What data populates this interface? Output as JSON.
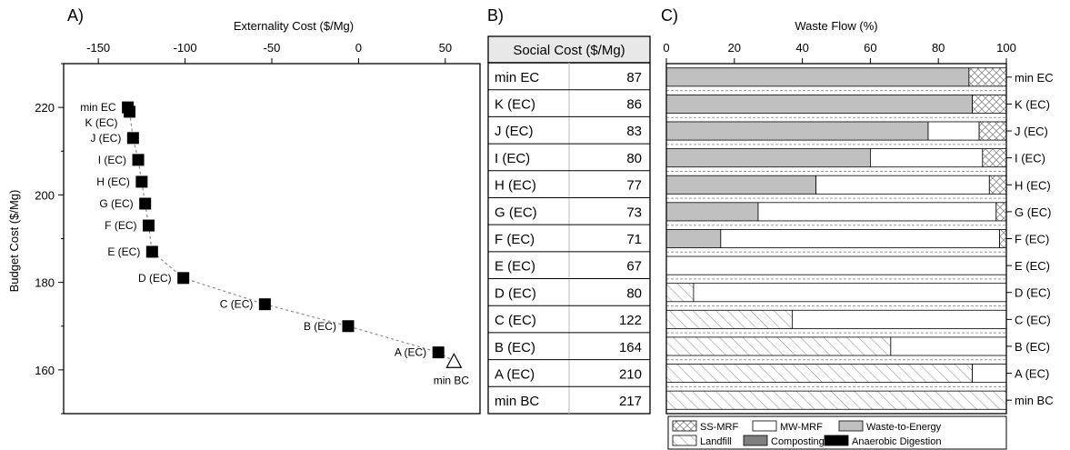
{
  "panels": {
    "a_label": "A)",
    "b_label": "B)",
    "c_label": "C)"
  },
  "chart_data": [
    {
      "type": "scatter",
      "panel": "A)",
      "xlabel": "Externality Cost ($/Mg)",
      "ylabel": "Budget Cost ($/Mg)",
      "xlim": [
        -170,
        70
      ],
      "ylim": [
        150,
        230
      ],
      "xticks": [
        -150,
        -100,
        -50,
        0,
        50
      ],
      "yticks": [
        160,
        180,
        200,
        220
      ],
      "series": [
        {
          "name": "EC",
          "marker": "filled-square",
          "points": [
            {
              "label": "min EC",
              "x": -133,
              "y": 220
            },
            {
              "label": "K (EC)",
              "x": -132,
              "y": 219
            },
            {
              "label": "J (EC)",
              "x": -130,
              "y": 213
            },
            {
              "label": "I (EC)",
              "x": -127,
              "y": 208
            },
            {
              "label": "H (EC)",
              "x": -125,
              "y": 203
            },
            {
              "label": "G (EC)",
              "x": -123,
              "y": 198
            },
            {
              "label": "F (EC)",
              "x": -121,
              "y": 193
            },
            {
              "label": "E (EC)",
              "x": -119,
              "y": 187
            },
            {
              "label": "D (EC)",
              "x": -101,
              "y": 181
            },
            {
              "label": "C (EC)",
              "x": -54,
              "y": 175
            },
            {
              "label": "B (EC)",
              "x": -6,
              "y": 170
            },
            {
              "label": "A (EC)",
              "x": 46,
              "y": 164
            }
          ]
        },
        {
          "name": "BC",
          "marker": "open-triangle",
          "points": [
            {
              "label": "min BC",
              "x": 55,
              "y": 162
            }
          ]
        }
      ]
    },
    {
      "type": "table",
      "panel": "B)",
      "header": "Social Cost ($/Mg)",
      "rows": [
        {
          "label": "min EC",
          "value": "87"
        },
        {
          "label": "K (EC)",
          "value": "86"
        },
        {
          "label": "J (EC)",
          "value": "83"
        },
        {
          "label": "I (EC)",
          "value": "80"
        },
        {
          "label": "H (EC)",
          "value": "77"
        },
        {
          "label": "G (EC)",
          "value": "73"
        },
        {
          "label": "F (EC)",
          "value": "71"
        },
        {
          "label": "E (EC)",
          "value": "67"
        },
        {
          "label": "D (EC)",
          "value": "80"
        },
        {
          "label": "C (EC)",
          "value": "122"
        },
        {
          "label": "B (EC)",
          "value": "164"
        },
        {
          "label": "A (EC)",
          "value": "210"
        },
        {
          "label": "min BC",
          "value": "217"
        }
      ]
    },
    {
      "type": "bar",
      "orientation": "horizontal",
      "stacked": true,
      "panel": "C)",
      "xlabel": "Waste Flow (%)",
      "xlim": [
        0,
        100
      ],
      "xticks": [
        0,
        20,
        40,
        60,
        80,
        100
      ],
      "categories": [
        "min EC",
        "K (EC)",
        "J (EC)",
        "I (EC)",
        "H (EC)",
        "G (EC)",
        "F (EC)",
        "E (EC)",
        "D (EC)",
        "C (EC)",
        "B (EC)",
        "A (EC)",
        "min BC"
      ],
      "series": [
        {
          "name": "Landfill",
          "pattern": "diagonal-hatch",
          "values": [
            0,
            0,
            0,
            0,
            0,
            0,
            0,
            0,
            8,
            37,
            66,
            90,
            100
          ]
        },
        {
          "name": "Composting",
          "color": "#7f7f7f",
          "values": [
            0,
            0,
            0,
            0,
            0,
            0,
            0,
            0,
            0,
            0,
            0,
            0,
            0
          ]
        },
        {
          "name": "Anaerobic Digestion",
          "color": "#000000",
          "values": [
            0,
            0,
            0,
            0,
            0,
            0,
            0,
            0,
            0,
            0,
            0,
            0,
            0
          ]
        },
        {
          "name": "Waste-to-Energy",
          "color": "#c0c0c0",
          "values": [
            89,
            90,
            77,
            60,
            44,
            27,
            16,
            0,
            0,
            0,
            0,
            0,
            0
          ]
        },
        {
          "name": "MW-MRF",
          "color": "#ffffff",
          "values": [
            0,
            0,
            15,
            33,
            51,
            70,
            82,
            100,
            92,
            63,
            34,
            10,
            0
          ]
        },
        {
          "name": "SS-MRF",
          "pattern": "cross-hatch",
          "values": [
            11,
            10,
            8,
            7,
            5,
            3,
            2,
            0,
            0,
            0,
            0,
            0,
            0
          ]
        }
      ],
      "legend": {
        "position": "bottom",
        "order": [
          "SS-MRF",
          "MW-MRF",
          "Waste-to-Energy",
          "Landfill",
          "Composting",
          "Anaerobic Digestion"
        ]
      }
    }
  ]
}
